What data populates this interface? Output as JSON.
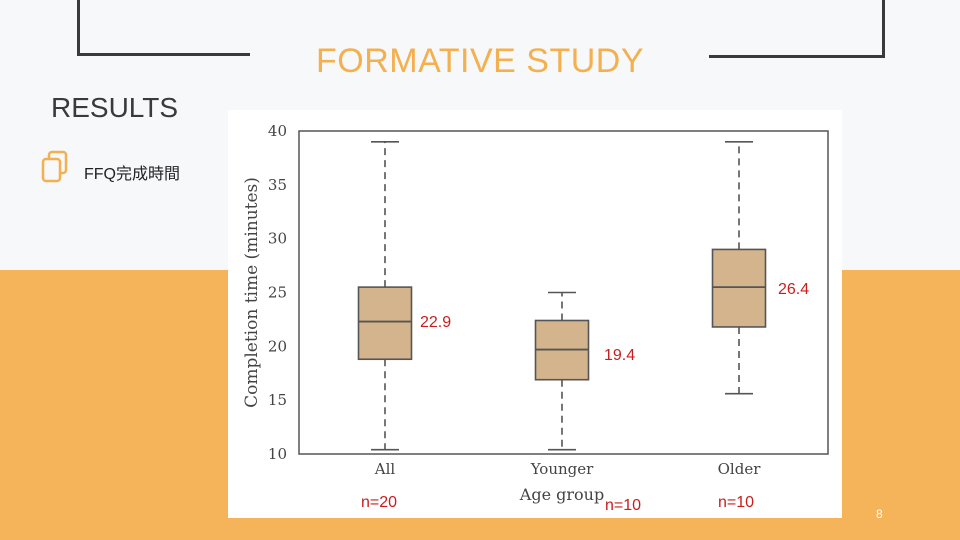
{
  "slide": {
    "title": "FORMATIVE STUDY",
    "section": "RESULTS",
    "bullet": "FFQ完成時間",
    "page_number": "8"
  },
  "colors": {
    "accent": "#f4b04f",
    "band": "#f6b45a",
    "box_fill": "#d4b48c",
    "annotation": "#c81e1e"
  },
  "chart_data": {
    "type": "box",
    "title": "",
    "xlabel": "Age group",
    "ylabel": "Completion time (minutes)",
    "ylim": [
      10,
      40
    ],
    "yticks": [
      "10",
      "15",
      "20",
      "25",
      "30",
      "35",
      "40"
    ],
    "categories": [
      "All",
      "Younger",
      "Older"
    ],
    "boxes": [
      {
        "name": "All",
        "min": 10.4,
        "q1": 18.8,
        "median": 22.3,
        "q3": 25.5,
        "max": 39.0,
        "mean_label": "22.9",
        "n_label": "n=20"
      },
      {
        "name": "Younger",
        "min": 10.4,
        "q1": 16.9,
        "median": 19.7,
        "q3": 22.4,
        "max": 25.0,
        "mean_label": "19.4",
        "n_label": "n=10"
      },
      {
        "name": "Older",
        "min": 15.6,
        "q1": 21.8,
        "median": 25.5,
        "q3": 29.0,
        "max": 39.0,
        "mean_label": "26.4",
        "n_label": "n=10"
      }
    ]
  }
}
